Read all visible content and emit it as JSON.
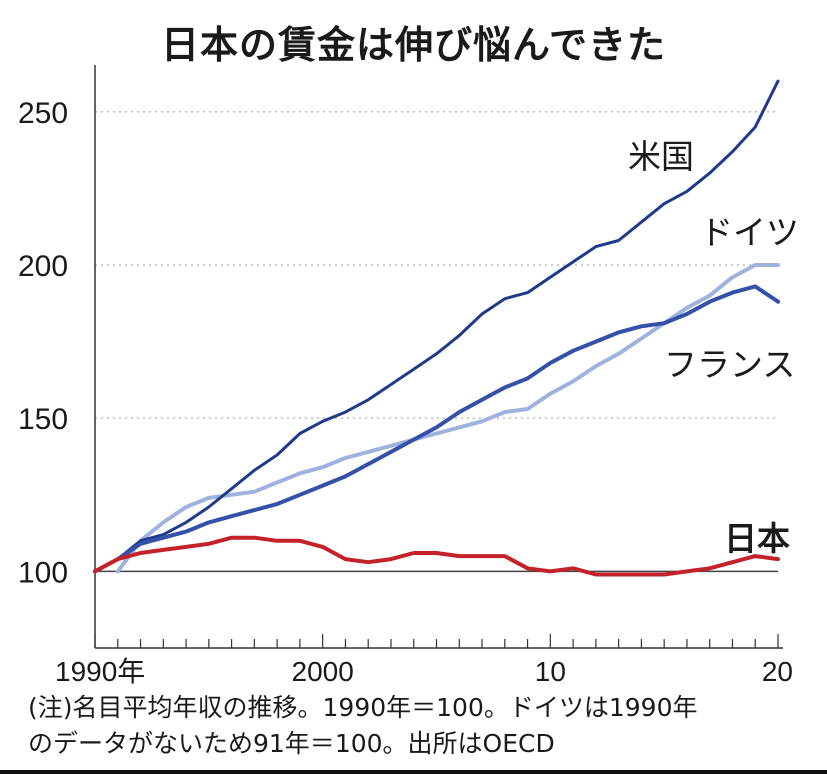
{
  "chart_data": {
    "type": "line",
    "title": "日本の賃金は伸び悩んできた",
    "xlabel": "",
    "ylabel": "",
    "xlim": [
      1990,
      2020
    ],
    "ylim": [
      75,
      262
    ],
    "x": [
      1990,
      1991,
      1992,
      1993,
      1994,
      1995,
      1996,
      1997,
      1998,
      1999,
      2000,
      2001,
      2002,
      2003,
      2004,
      2005,
      2006,
      2007,
      2008,
      2009,
      2010,
      2011,
      2012,
      2013,
      2014,
      2015,
      2016,
      2017,
      2018,
      2019,
      2020
    ],
    "x_tick_labels": [
      {
        "value": 1990,
        "label": "1990年"
      },
      {
        "value": 2000,
        "label": "2000"
      },
      {
        "value": 2010,
        "label": "10"
      },
      {
        "value": 2020,
        "label": "20"
      }
    ],
    "y_ticks": [
      100,
      150,
      200,
      250
    ],
    "y_tick_labels": [
      "100",
      "150",
      "200",
      "250"
    ],
    "grid": "horizontal dotted at 150, 200, 250; solid line at 100",
    "series": [
      {
        "name": "米国",
        "color": "#1f3a8a",
        "width": 3,
        "values": [
          100,
          104,
          110,
          112,
          116,
          121,
          127,
          133,
          138,
          145,
          149,
          152,
          156,
          161,
          166,
          171,
          177,
          184,
          189,
          191,
          196,
          201,
          206,
          208,
          214,
          220,
          224,
          230,
          237,
          245,
          260
        ]
      },
      {
        "name": "ドイツ",
        "color": "#9fb2dd",
        "width": 4,
        "values": [
          null,
          100,
          110,
          116,
          121,
          124,
          125,
          126,
          129,
          132,
          134,
          137,
          139,
          141,
          143,
          145,
          147,
          149,
          152,
          153,
          158,
          162,
          167,
          171,
          176,
          181,
          186,
          190,
          196,
          200,
          200
        ]
      },
      {
        "name": "フランス",
        "color": "#3450a8",
        "width": 4,
        "values": [
          100,
          104,
          109,
          111,
          113,
          116,
          118,
          120,
          122,
          125,
          128,
          131,
          135,
          139,
          143,
          147,
          152,
          156,
          160,
          163,
          168,
          172,
          175,
          178,
          180,
          181,
          184,
          188,
          191,
          193,
          188
        ]
      },
      {
        "name": "日本",
        "color": "#c4212a",
        "width": 4,
        "values": [
          100,
          104,
          106,
          107,
          108,
          109,
          111,
          111,
          110,
          110,
          108,
          104,
          103,
          104,
          106,
          106,
          105,
          105,
          105,
          101,
          100,
          101,
          99,
          99,
          99,
          99,
          100,
          101,
          103,
          105,
          104
        ]
      }
    ],
    "series_labels": [
      {
        "name": "米国"
      },
      {
        "name": "ドイツ"
      },
      {
        "name": "フランス"
      },
      {
        "name": "日本"
      }
    ]
  },
  "note": {
    "line1": "(注)名目平均年収の推移。1990年＝100。ドイツは1990年",
    "line2": "のデータがないため91年＝100。出所はOECD"
  }
}
